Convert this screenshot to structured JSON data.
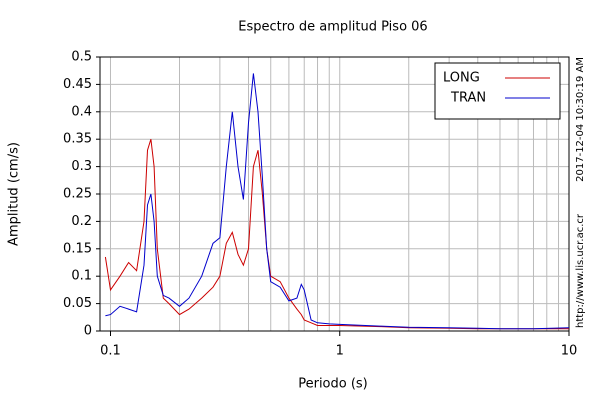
{
  "chart_data": {
    "type": "line",
    "title": "Espectro de amplitud Piso 06",
    "xlabel": "Periodo (s)",
    "ylabel": "Amplitud (cm/s)",
    "side_texts": [
      "http://www.lis.ucr.ac.cr",
      "2017-12-04 10:30:19 AM"
    ],
    "x": [
      0.095,
      0.1,
      0.11,
      0.12,
      0.13,
      0.14,
      0.145,
      0.15,
      0.155,
      0.16,
      0.17,
      0.18,
      0.2,
      0.22,
      0.25,
      0.28,
      0.3,
      0.32,
      0.34,
      0.36,
      0.38,
      0.4,
      0.42,
      0.44,
      0.46,
      0.48,
      0.5,
      0.55,
      0.6,
      0.65,
      0.68,
      0.7,
      0.75,
      0.8,
      0.9,
      1,
      1.5,
      2,
      3,
      4,
      5,
      7,
      10
    ],
    "series": [
      {
        "name": "LONG",
        "color": "#cc0000",
        "values": [
          0.135,
          0.075,
          0.1,
          0.125,
          0.11,
          0.2,
          0.33,
          0.35,
          0.3,
          0.15,
          0.06,
          0.05,
          0.03,
          0.04,
          0.06,
          0.08,
          0.1,
          0.16,
          0.18,
          0.14,
          0.12,
          0.15,
          0.3,
          0.33,
          0.25,
          0.15,
          0.1,
          0.09,
          0.06,
          0.04,
          0.03,
          0.02,
          0.015,
          0.01,
          0.01,
          0.01,
          0.008,
          0.006,
          0.005,
          0.004,
          0.004,
          0.004,
          0.004
        ]
      },
      {
        "name": "TRAN",
        "color": "#0000cc",
        "values": [
          0.028,
          0.03,
          0.045,
          0.04,
          0.035,
          0.12,
          0.23,
          0.25,
          0.2,
          0.1,
          0.065,
          0.06,
          0.045,
          0.06,
          0.1,
          0.16,
          0.17,
          0.3,
          0.4,
          0.3,
          0.24,
          0.38,
          0.47,
          0.4,
          0.28,
          0.15,
          0.09,
          0.08,
          0.055,
          0.06,
          0.085,
          0.075,
          0.02,
          0.015,
          0.013,
          0.012,
          0.009,
          0.007,
          0.006,
          0.005,
          0.004,
          0.004,
          0.006
        ]
      }
    ],
    "xlim": [
      0.09,
      10
    ],
    "ylim": [
      0,
      0.5
    ],
    "xticks": [
      0.1,
      1,
      10
    ],
    "yticks": [
      0,
      0.05,
      0.1,
      0.15,
      0.2,
      0.25,
      0.3,
      0.35,
      0.4,
      0.45,
      0.5
    ],
    "xscale": "log",
    "grid": true,
    "legend": "top-right"
  }
}
